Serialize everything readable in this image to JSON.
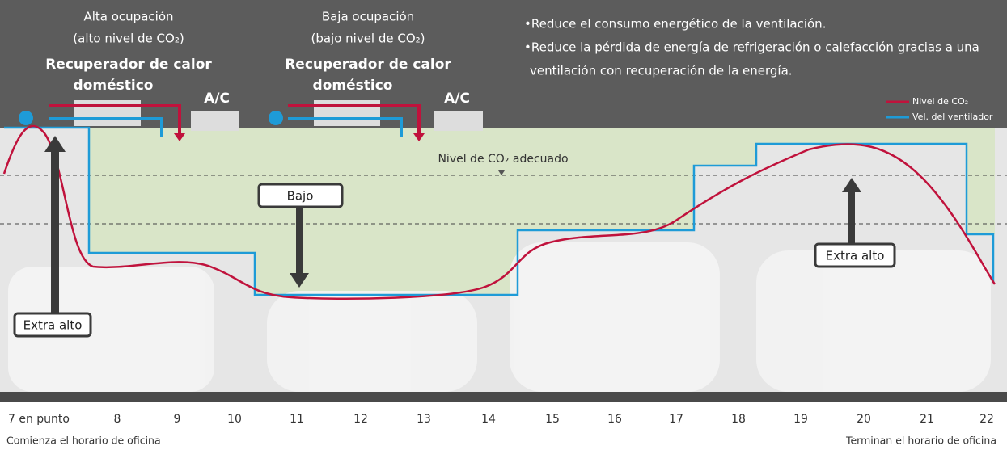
{
  "left": {
    "title": "Alta ocupación",
    "subtitle": "(alto nivel de CO₂)",
    "unit_line1": "Recuperador de calor",
    "unit_line2": "doméstico",
    "ac": "A/C"
  },
  "middle": {
    "title": "Baja ocupación",
    "subtitle": "(bajo nivel de CO₂)",
    "unit_line1": "Recuperador de calor",
    "unit_line2": "doméstico",
    "ac": "A/C"
  },
  "bullets": [
    "•Reduce el consumo energético de la ventilación.",
    "•Reduce la pérdida de energía de refrigeración o calefacción gracias a una",
    "ventilación con recuperación de la energía."
  ],
  "legend": [
    "Nivel de CO₂",
    "Vel. del ventilador"
  ],
  "threshold_label": "Nivel de CO₂ adecuado",
  "callouts": [
    "Extra alto",
    "Bajo",
    "Extra alto"
  ],
  "hours": [
    "7 en punto",
    "8",
    "9",
    "10",
    "11",
    "12",
    "13",
    "14",
    "15",
    "16",
    "17",
    "18",
    "19",
    "20",
    "21",
    "22"
  ],
  "footer": {
    "start": "Comienza el horario de oficina",
    "end": "Terminan el horario de oficina"
  }
}
